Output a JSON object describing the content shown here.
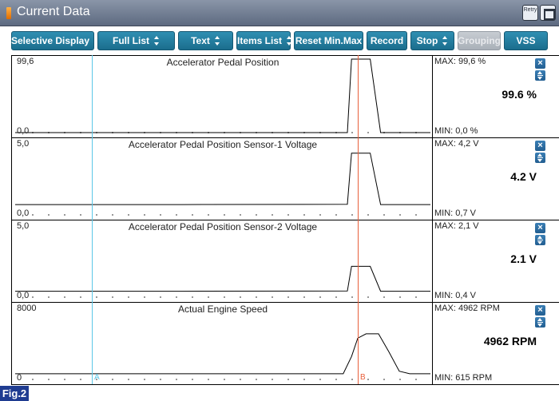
{
  "window": {
    "title": "Current Data",
    "retry_label": "Retry"
  },
  "toolbar": {
    "buttons": [
      {
        "label": "Selective Display",
        "has_spinner": true,
        "enabled": true
      },
      {
        "label": "Full List",
        "has_spinner": true,
        "enabled": true
      },
      {
        "label": "Text",
        "has_spinner": true,
        "enabled": true
      },
      {
        "label": "Items List",
        "has_spinner": true,
        "enabled": true
      },
      {
        "label": "Reset Min.Max",
        "has_spinner": false,
        "enabled": true
      },
      {
        "label": "Record",
        "has_spinner": false,
        "enabled": true
      },
      {
        "label": "Stop",
        "has_spinner": true,
        "enabled": true
      },
      {
        "label": "Grouping",
        "has_spinner": false,
        "enabled": false
      },
      {
        "label": "VSS",
        "has_spinner": false,
        "enabled": true
      }
    ]
  },
  "cursors": {
    "a_label": "A",
    "b_label": "B",
    "a_color": "#5bc7e8",
    "b_color": "#e8603c"
  },
  "panels": [
    {
      "title": "Accelerator Pedal Position",
      "axis_max": "99,6",
      "axis_min": "0,0",
      "max_text": "MAX:  99,6 %",
      "min_text": "MIN:  0,0 %",
      "current_text": "99.6 %",
      "y_range": [
        0,
        99.6
      ],
      "series": [
        [
          0,
          0
        ],
        [
          0.4,
          0
        ],
        [
          0.8,
          0
        ],
        [
          0.81,
          99.6
        ],
        [
          0.855,
          99.6
        ],
        [
          0.88,
          0
        ],
        [
          1.0,
          0
        ]
      ]
    },
    {
      "title": "Accelerator Pedal Position Sensor-1 Voltage",
      "axis_max": "5,0",
      "axis_min": "0,0",
      "max_text": "MAX:   4,2 V",
      "min_text": "MIN:  0,7 V",
      "current_text": "4.2 V",
      "y_range": [
        0,
        5
      ],
      "series": [
        [
          0,
          0.7
        ],
        [
          0.4,
          0.7
        ],
        [
          0.8,
          0.72
        ],
        [
          0.81,
          4.2
        ],
        [
          0.855,
          4.2
        ],
        [
          0.88,
          0.7
        ],
        [
          1.0,
          0.7
        ]
      ]
    },
    {
      "title": "Accelerator Pedal Position Sensor-2 Voltage",
      "axis_max": "5,0",
      "axis_min": "0,0",
      "max_text": "MAX:   2,1 V",
      "min_text": "MIN:  0,4 V",
      "current_text": "2.1 V",
      "y_range": [
        0,
        5
      ],
      "series": [
        [
          0,
          0.4
        ],
        [
          0.4,
          0.4
        ],
        [
          0.8,
          0.42
        ],
        [
          0.81,
          2.1
        ],
        [
          0.855,
          2.1
        ],
        [
          0.88,
          0.4
        ],
        [
          1.0,
          0.4
        ]
      ]
    },
    {
      "title": "Actual Engine Speed",
      "axis_max": "8000",
      "axis_min": "0",
      "max_text": "MAX:  4962 RPM",
      "min_text": "MIN:  615 RPM",
      "current_text": "4962 RPM",
      "y_range": [
        0,
        8000
      ],
      "series": [
        [
          0,
          615
        ],
        [
          0.4,
          615
        ],
        [
          0.79,
          620
        ],
        [
          0.81,
          2500
        ],
        [
          0.825,
          4500
        ],
        [
          0.845,
          4962
        ],
        [
          0.875,
          4962
        ],
        [
          0.9,
          3000
        ],
        [
          0.925,
          900
        ],
        [
          0.95,
          615
        ],
        [
          1.0,
          615
        ]
      ]
    }
  ],
  "figure_label": "Fig.2"
}
